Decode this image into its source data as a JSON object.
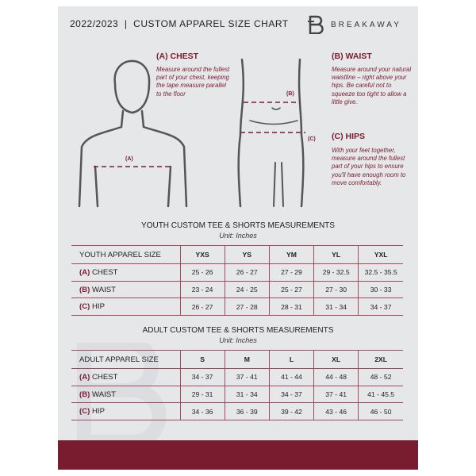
{
  "header": {
    "title": "2022/2023  |  CUSTOM APPAREL SIZE CHART",
    "brand": "BREAKAWAY",
    "logo_letter": "B"
  },
  "measures": {
    "chest": {
      "title": "(A) CHEST",
      "desc": "Measure around the fullest part of your chest, keeping the tape measure parallel to the floor",
      "marker": "(A)"
    },
    "waist": {
      "title": "(B) WAIST",
      "desc": "Measure around your natural waistline – right above your hips. Be careful not to squeeze too tight to allow a little give.",
      "marker": "(B)"
    },
    "hips": {
      "title": "(C) HIPS",
      "desc": "With your feet together, measure around the fullest part of your hips to ensure you'll have enough room to move comfortably.",
      "marker": "(C)"
    }
  },
  "youth": {
    "title": "YOUTH CUSTOM TEE & SHORTS MEASUREMENTS",
    "unit": "Unit: Inches",
    "header": "YOUTH APPAREL SIZE",
    "sizes": [
      "YXS",
      "YS",
      "YM",
      "YL",
      "YXL"
    ],
    "rows": [
      {
        "code": "(A)",
        "name": "CHEST",
        "values": [
          "25 - 26",
          "26 - 27",
          "27 - 29",
          "29 - 32.5",
          "32.5 - 35.5"
        ]
      },
      {
        "code": "(B)",
        "name": "WAIST",
        "values": [
          "23 - 24",
          "24 - 25",
          "25 - 27",
          "27 - 30",
          "30 - 33"
        ]
      },
      {
        "code": "(C)",
        "name": "HIP",
        "values": [
          "26 - 27",
          "27 - 28",
          "28 - 31",
          "31 - 34",
          "34 - 37"
        ]
      }
    ]
  },
  "adult": {
    "title": "ADULT CUSTOM TEE & SHORTS MEASUREMENTS",
    "unit": "Unit: Inches",
    "header": "ADULT APPAREL SIZE",
    "sizes": [
      "S",
      "M",
      "L",
      "XL",
      "2XL"
    ],
    "rows": [
      {
        "code": "(A)",
        "name": "CHEST",
        "values": [
          "34 - 37",
          "37 - 41",
          "41 - 44",
          "44 - 48",
          "48 - 52"
        ]
      },
      {
        "code": "(B)",
        "name": "WAIST",
        "values": [
          "29 - 31",
          "31 - 34",
          "34 - 37",
          "37 - 41",
          "41 - 45.5"
        ]
      },
      {
        "code": "(C)",
        "name": "HIP",
        "values": [
          "34 - 36",
          "36 - 39",
          "39 - 42",
          "43 - 46",
          "46 - 50"
        ]
      }
    ]
  },
  "colors": {
    "accent": "#7a1c30",
    "panel": "#e6e7e9"
  }
}
